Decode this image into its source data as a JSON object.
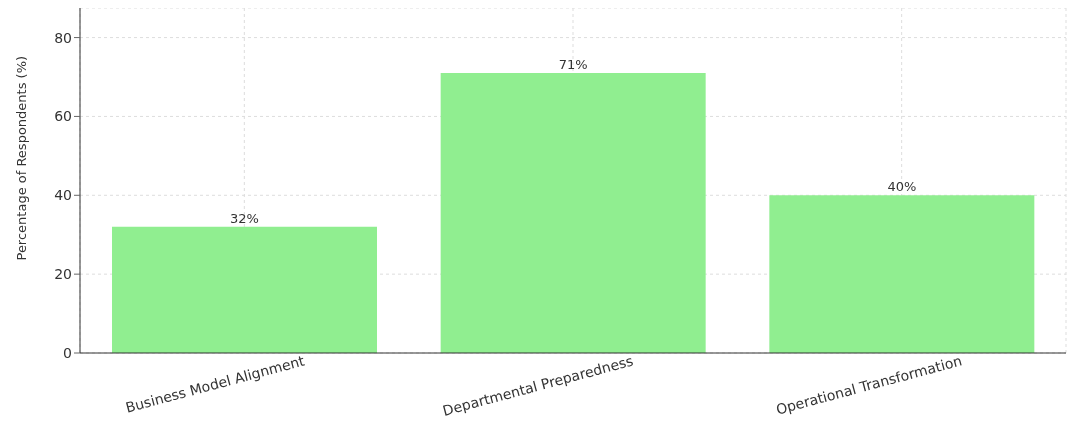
{
  "chart_data": {
    "type": "bar",
    "ylabel": "Percentage of Respondents (%)",
    "categories": [
      "Business Model Alignment",
      "Departmental Preparedness",
      "Operational Transformation"
    ],
    "values": [
      32,
      71,
      40
    ],
    "color": "#90ee90",
    "value_labels": [
      "32%",
      "71%",
      "40%"
    ],
    "ylim": [
      0,
      87.5
    ],
    "yticks": [
      0,
      20,
      40,
      60,
      80
    ],
    "grid": true
  }
}
